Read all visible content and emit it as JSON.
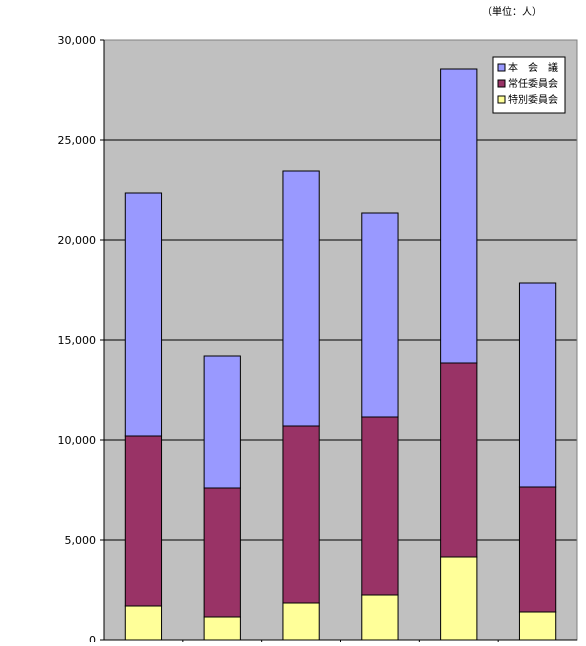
{
  "unit_note": "（単位：人）",
  "colors": {
    "plot_background": "#C0C0C0",
    "gridline": "#000000",
    "honkaigi": "#9999FF",
    "jonin": "#993366",
    "tokubetsu": "#FFFF99"
  },
  "chart_data": {
    "type": "bar",
    "stacked": true,
    "title": "",
    "xlabel": "",
    "ylabel": "",
    "ylim": [
      0,
      30000
    ],
    "yticks": [
      0,
      5000,
      10000,
      15000,
      20000,
      25000,
      30000
    ],
    "ytick_labels": [
      "0",
      "5,000",
      "10,000",
      "15,000",
      "20,000",
      "25,000",
      "30,000"
    ],
    "grid": true,
    "legend_position": "top-right",
    "categories": [
      "",
      "",
      "",
      "",
      "",
      ""
    ],
    "series": [
      {
        "name": "特別委員会",
        "color": "#FFFF99",
        "values": [
          1700,
          1150,
          1850,
          2250,
          4150,
          1400
        ]
      },
      {
        "name": "常任委員会",
        "color": "#993366",
        "values": [
          8500,
          6450,
          8850,
          8900,
          9700,
          6250
        ]
      },
      {
        "name": "本　会　議",
        "color": "#9999FF",
        "values": [
          12150,
          6600,
          12750,
          10200,
          14700,
          10200
        ]
      }
    ],
    "legend_order": [
      "本　会　議",
      "常任委員会",
      "特別委員会"
    ]
  }
}
